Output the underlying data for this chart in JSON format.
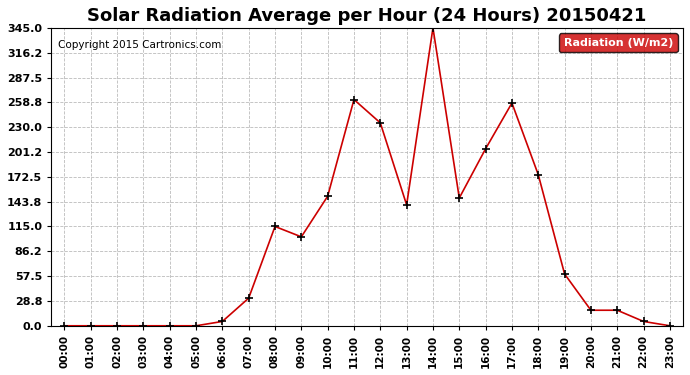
{
  "title": "Solar Radiation Average per Hour (24 Hours) 20150421",
  "copyright": "Copyright 2015 Cartronics.com",
  "legend_label": "Radiation (W/m2)",
  "hours": [
    0,
    1,
    2,
    3,
    4,
    5,
    6,
    7,
    8,
    9,
    10,
    11,
    12,
    13,
    14,
    15,
    16,
    17,
    18,
    19,
    20,
    21,
    22,
    23
  ],
  "values": [
    0.0,
    0.0,
    0.0,
    0.0,
    0.0,
    0.0,
    5.0,
    32.0,
    115.0,
    103.0,
    150.0,
    262.0,
    235.0,
    140.0,
    345.0,
    148.0,
    205.0,
    258.0,
    175.0,
    60.0,
    18.0,
    18.0,
    5.0,
    0.0
  ],
  "yticks": [
    0.0,
    28.8,
    57.5,
    86.2,
    115.0,
    143.8,
    172.5,
    201.2,
    230.0,
    258.8,
    287.5,
    316.2,
    345.0
  ],
  "line_color": "#cc0000",
  "marker": "+",
  "marker_color": "#000000",
  "bg_color": "#ffffff",
  "grid_color": "#bbbbbb",
  "title_fontsize": 13,
  "legend_bg": "#cc0000",
  "legend_text_color": "#ffffff"
}
